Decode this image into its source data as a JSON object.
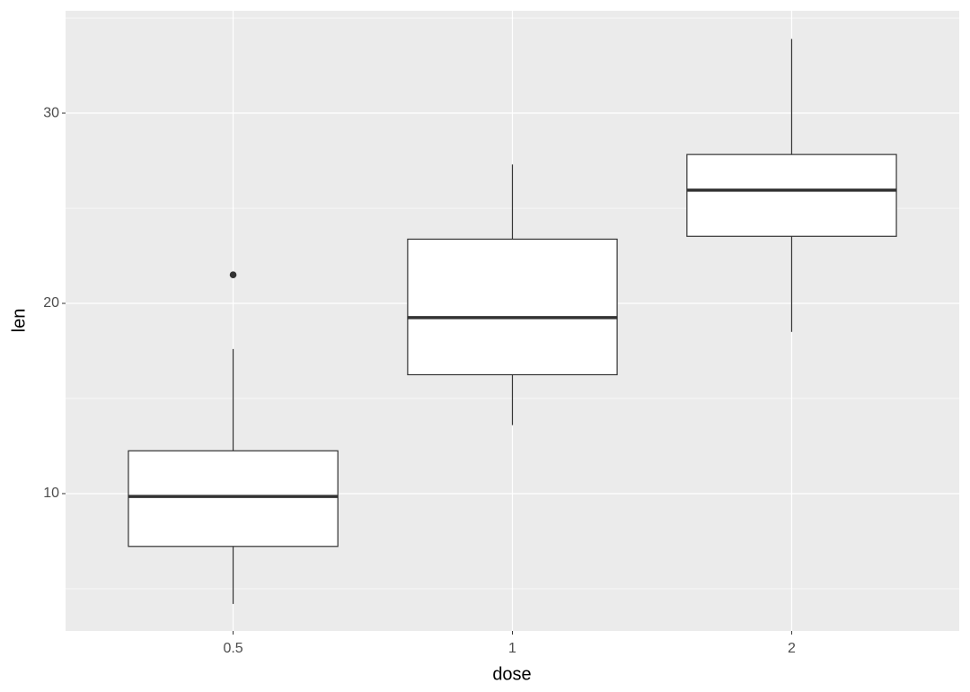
{
  "chart_data": {
    "type": "box",
    "x_label": "dose",
    "y_label": "len",
    "categories": [
      "0.5",
      "1",
      "2"
    ],
    "boxes": [
      {
        "min": 4.2,
        "q1": 7.225,
        "median": 9.85,
        "q3": 12.25,
        "max": 17.6,
        "outliers": [
          21.5
        ]
      },
      {
        "min": 13.6,
        "q1": 16.25,
        "median": 19.25,
        "q3": 23.375,
        "max": 27.3,
        "outliers": []
      },
      {
        "min": 18.5,
        "q1": 23.525,
        "median": 25.95,
        "q3": 27.825,
        "max": 33.9,
        "outliers": []
      }
    ],
    "ylim": [
      2.78,
      35.38
    ],
    "yticks": [
      10,
      20,
      30
    ],
    "y_minor_gridlines": [
      5,
      15,
      25,
      35
    ],
    "grid": true,
    "panel_color": "#ebebeb",
    "box_fill": "#ffffff",
    "line_color": "#333333"
  }
}
